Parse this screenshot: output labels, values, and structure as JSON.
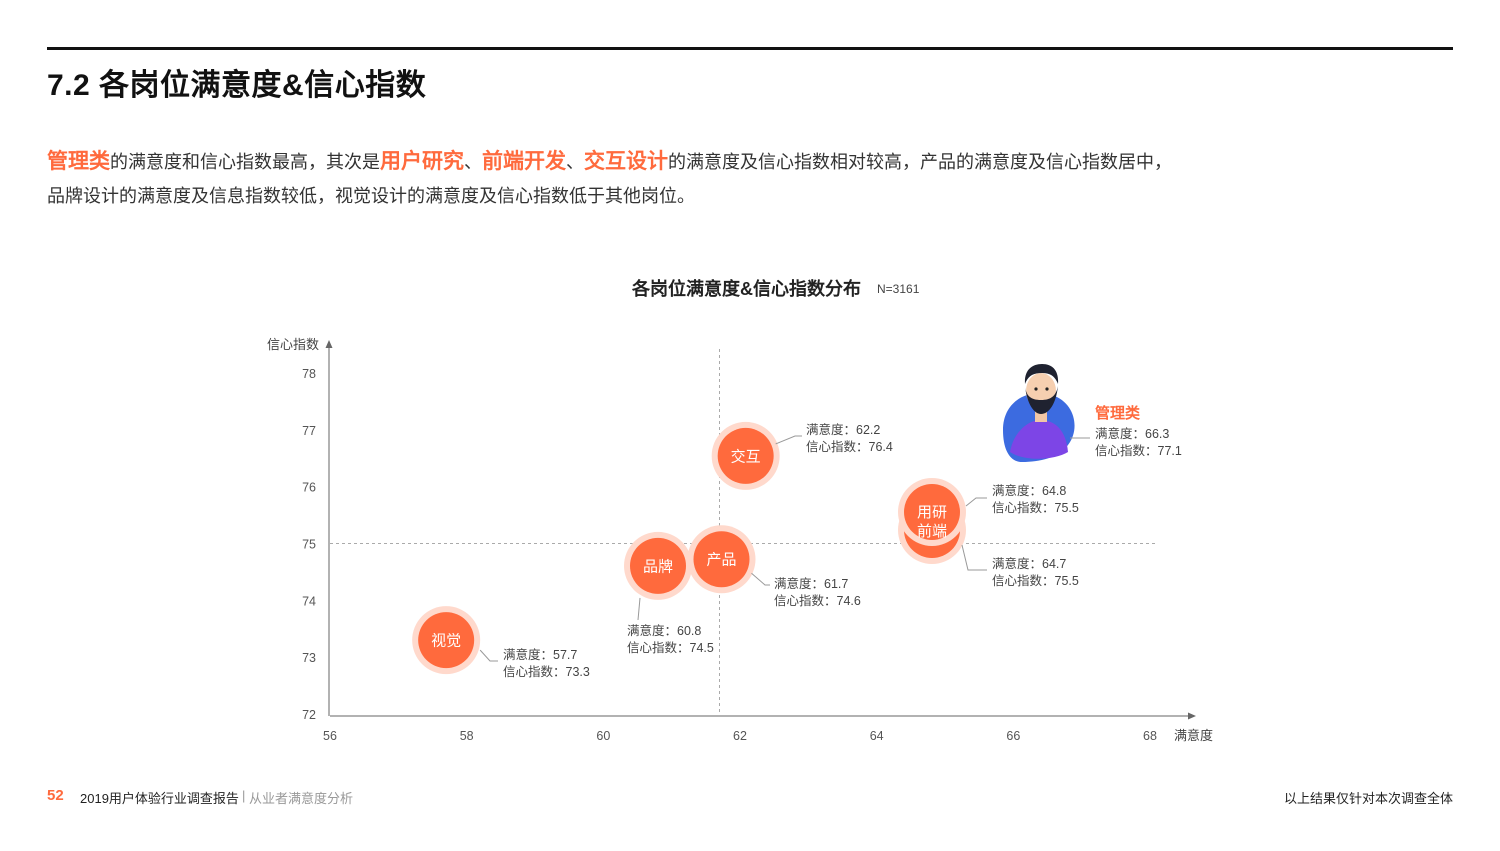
{
  "page": {
    "title": "7.2 各岗位满意度&信心指数",
    "summary": {
      "p1_hl1": "管理类",
      "p1_t1": "的满意度和信心指数最高，其次是",
      "p1_hl2": "用户研究",
      "p1_sep1": "、",
      "p1_hl3": "前端开发",
      "p1_sep2": "、",
      "p1_hl4": "交互设计",
      "p1_t2": "的满意度及信心指数相对较高，产品的满意度及信心指数居中，",
      "p2": "品牌设计的满意度及信息指数较低，视觉设计的满意度及信心指数低于其他岗位。"
    }
  },
  "chart_title": "各岗位满意度&信心指数分布",
  "chart_n": "N=3161",
  "colors": {
    "accent": "#ff6a3d",
    "accent_ring": "#ffd9cc",
    "axis": "#666666",
    "guide": "#aaaaaa"
  },
  "chart_data": {
    "type": "scatter",
    "xlabel": "满意度",
    "ylabel": "信心指数",
    "xlim": [
      56,
      68
    ],
    "ylim": [
      72,
      78
    ],
    "xticks": [
      56,
      58,
      60,
      62,
      64,
      66,
      68
    ],
    "yticks": [
      72,
      73,
      74,
      75,
      76,
      77,
      78
    ],
    "reference_lines": {
      "x": 61.7,
      "y": 75
    },
    "x_prefix": "满意度：",
    "y_prefix": "信心指数：",
    "points": [
      {
        "label": "交互",
        "x": 62.2,
        "y": 76.4
      },
      {
        "label": "用研",
        "x": 64.8,
        "y": 75.5
      },
      {
        "label": "前端",
        "x": 64.7,
        "y": 75.5
      },
      {
        "label": "产品",
        "x": 61.7,
        "y": 74.6
      },
      {
        "label": "品牌",
        "x": 60.8,
        "y": 74.5
      },
      {
        "label": "视觉",
        "x": 57.7,
        "y": 73.3
      },
      {
        "label": "管理类",
        "x": 66.3,
        "y": 77.1,
        "avatar": true
      }
    ]
  },
  "footer": {
    "page_number": "52",
    "report": "2019用户体验行业调查报告",
    "separator": "|",
    "section": "从业者满意度分析",
    "note": "以上结果仅针对本次调查全体"
  }
}
